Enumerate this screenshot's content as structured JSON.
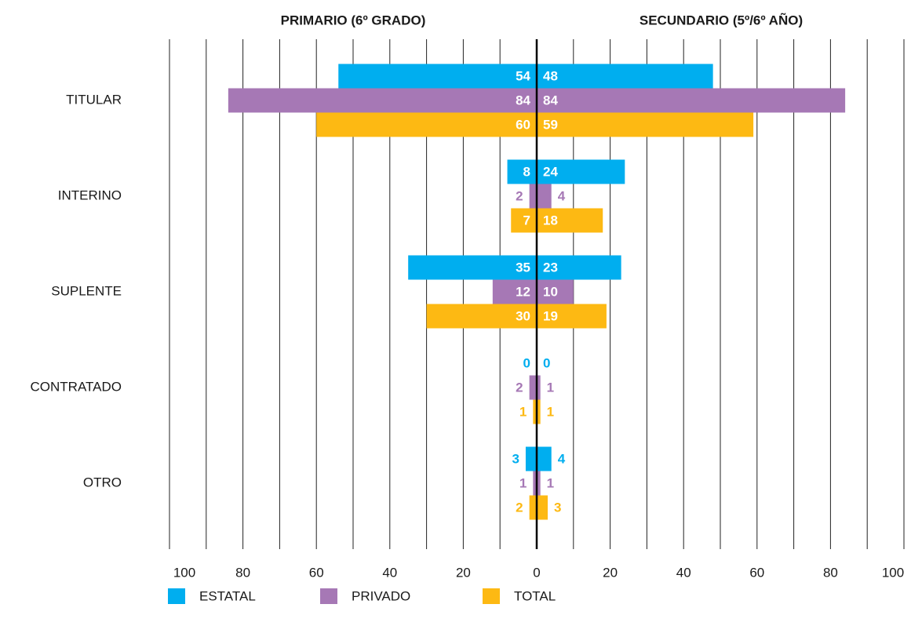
{
  "chart_data": {
    "type": "butterfly",
    "categories": [
      "TITULAR",
      "INTERINO",
      "SUPLENTE",
      "CONTRATADO",
      "OTRO"
    ],
    "panels": [
      {
        "title": "PRIMARIO (6º GRADO)",
        "xlim": [
          100,
          0
        ],
        "xticks": [
          100,
          80,
          60,
          40,
          20
        ]
      },
      {
        "title": "SECUNDARIO (5º/6º AÑO)",
        "xlim": [
          0,
          100
        ],
        "xticks": [
          0,
          20,
          40,
          60,
          80,
          100
        ]
      }
    ],
    "series": [
      {
        "name": "ESTATAL",
        "color": "#00aeef",
        "values": [
          [
            54,
            48
          ],
          [
            8,
            24
          ],
          [
            35,
            23
          ],
          [
            0,
            0
          ],
          [
            3,
            4
          ]
        ]
      },
      {
        "name": "PRIVADO",
        "color": "#a678b5",
        "values": [
          [
            84,
            84
          ],
          [
            2,
            4
          ],
          [
            12,
            10
          ],
          [
            2,
            1
          ],
          [
            1,
            1
          ]
        ]
      },
      {
        "name": "TOTAL",
        "color": "#fdb913",
        "values": [
          [
            60,
            59
          ],
          [
            7,
            18
          ],
          [
            30,
            19
          ],
          [
            1,
            1
          ],
          [
            2,
            3
          ]
        ]
      }
    ],
    "grid": true
  }
}
